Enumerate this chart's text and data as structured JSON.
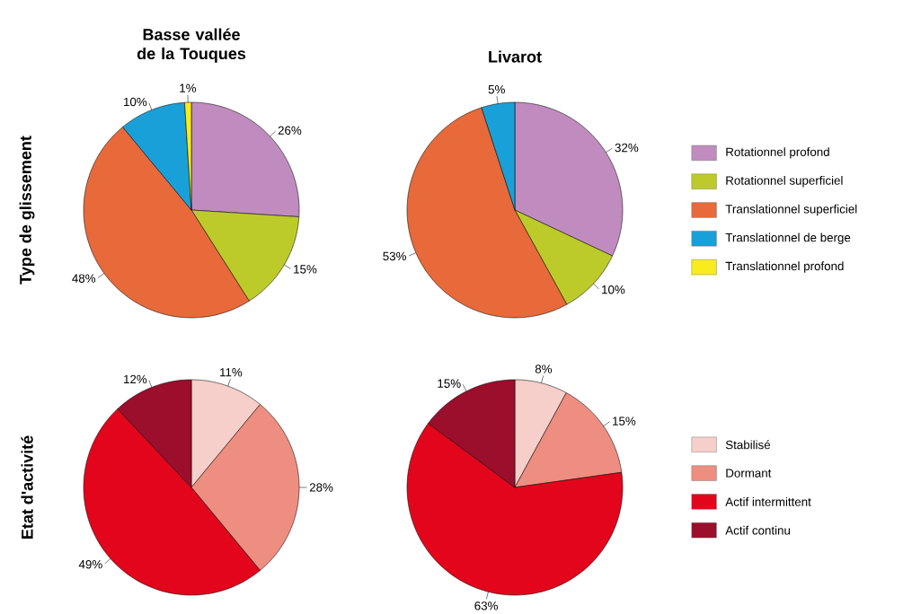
{
  "chart_data": [
    {
      "type": "pie",
      "title": "Basse vallée de la Touques",
      "ylabel": "Type de glissement",
      "categories": [
        null,
        null,
        null,
        null,
        null
      ],
      "values": [
        26,
        15,
        48,
        10,
        1
      ],
      "colors": [
        "#c08cbf",
        "#bccb2a",
        "#e8693a",
        "#1aa0d8",
        "#f8ec1c"
      ],
      "value_labels": [
        "26%",
        "15%",
        "48%",
        "10%",
        "1%"
      ]
    },
    {
      "type": "pie",
      "title": "Livarot",
      "categories": [
        "Rotationnel profond",
        "Rotationnel superficiel",
        "Translationnel superficiel",
        "Translationnel de berge",
        "Translationnel profond"
      ],
      "values": [
        32,
        10,
        53,
        5,
        0
      ],
      "colors": [
        "#c08cbf",
        "#bccb2a",
        "#e8693a",
        "#1aa0d8",
        "#f8ec1c"
      ],
      "value_labels": [
        "32%",
        "10%",
        "53%",
        "5%",
        null
      ],
      "legend": "right"
    },
    {
      "type": "pie",
      "ylabel": "Etat d'activité",
      "categories": [
        null,
        null,
        null,
        null
      ],
      "values": [
        11,
        28,
        49,
        12
      ],
      "colors": [
        "#f6cfca",
        "#ee8e80",
        "#e3051b",
        "#9b0e2c"
      ],
      "value_labels": [
        "11%",
        "28%",
        "49%",
        "12%"
      ]
    },
    {
      "type": "pie",
      "categories": [
        "Stabilisé",
        "Dormant",
        "Actif intermittent",
        "Actif continu"
      ],
      "values": [
        8,
        15,
        63,
        15
      ],
      "colors": [
        "#f6cfca",
        "#ee8e80",
        "#e3051b",
        "#9b0e2c"
      ],
      "value_labels": [
        "8%",
        "15%",
        "63%",
        "15%"
      ],
      "legend": "right"
    }
  ]
}
